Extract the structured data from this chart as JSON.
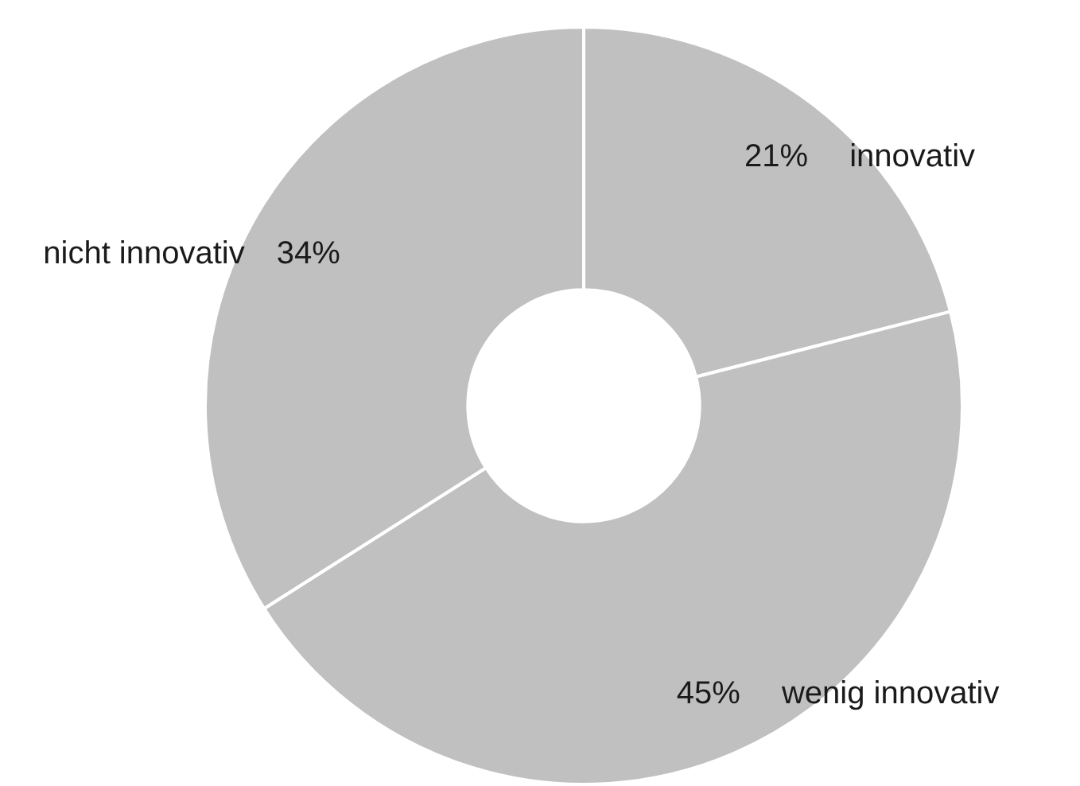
{
  "chart_data": {
    "type": "donut",
    "categories": [
      "innovativ",
      "wenig innovativ",
      "nicht innovativ"
    ],
    "values": [
      21,
      45,
      34
    ],
    "colors": [
      "#c0c0c0",
      "#c0c0c0",
      "#c0c0c0"
    ],
    "value_labels": [
      "21%",
      "45%",
      "34%"
    ],
    "legend": false
  }
}
